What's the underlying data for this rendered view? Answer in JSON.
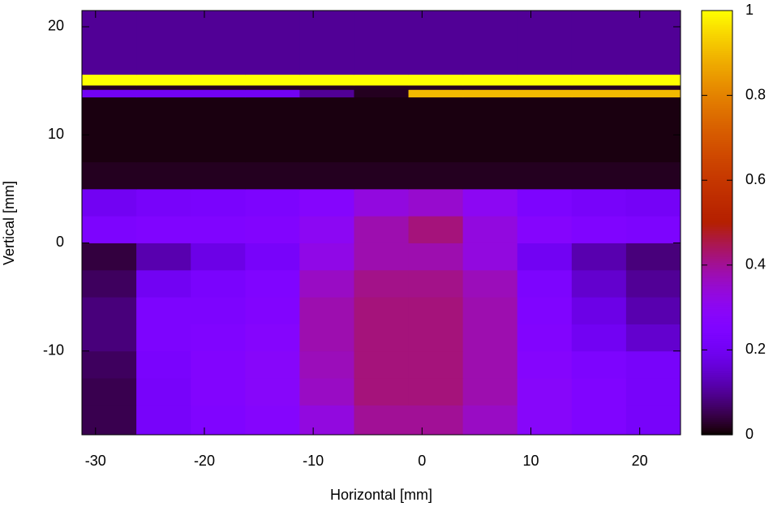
{
  "chart_data": {
    "type": "heatmap",
    "x_label": "Horizontal [mm]",
    "y_label": "Vertical [mm]",
    "x_edges": [
      -31.25,
      -26.25,
      -21.25,
      -16.25,
      -11.25,
      -6.25,
      -1.25,
      3.75,
      8.75,
      13.75,
      18.75,
      23.75
    ],
    "y_edges": [
      -17.75,
      -15,
      -12.5,
      -10,
      -7.5,
      -5,
      -2.5,
      0,
      2.5,
      5,
      7.5,
      13.5,
      14.2,
      14.6,
      15.6,
      21.5
    ],
    "z": [
      [
        0.05,
        0.22,
        0.25,
        0.27,
        0.33,
        0.4,
        0.4,
        0.36,
        0.28,
        0.25,
        0.22
      ],
      [
        0.05,
        0.22,
        0.26,
        0.28,
        0.36,
        0.42,
        0.42,
        0.38,
        0.28,
        0.25,
        0.22
      ],
      [
        0.06,
        0.23,
        0.26,
        0.28,
        0.37,
        0.42,
        0.42,
        0.38,
        0.27,
        0.24,
        0.22
      ],
      [
        0.08,
        0.24,
        0.25,
        0.27,
        0.38,
        0.42,
        0.42,
        0.38,
        0.26,
        0.2,
        0.15
      ],
      [
        0.08,
        0.24,
        0.24,
        0.26,
        0.38,
        0.42,
        0.42,
        0.38,
        0.25,
        0.18,
        0.12
      ],
      [
        0.06,
        0.2,
        0.23,
        0.25,
        0.36,
        0.41,
        0.41,
        0.37,
        0.24,
        0.15,
        0.1
      ],
      [
        0.04,
        0.12,
        0.18,
        0.22,
        0.32,
        0.38,
        0.38,
        0.33,
        0.2,
        0.12,
        0.08
      ],
      [
        0.24,
        0.25,
        0.25,
        0.26,
        0.3,
        0.38,
        0.42,
        0.33,
        0.27,
        0.25,
        0.24
      ],
      [
        0.2,
        0.22,
        0.23,
        0.24,
        0.27,
        0.33,
        0.35,
        0.3,
        0.24,
        0.22,
        0.21
      ],
      [
        0.02,
        0.02,
        0.02,
        0.02,
        0.02,
        0.02,
        0.02,
        0.02,
        0.02,
        0.02,
        0.02
      ],
      [
        0.01,
        0.01,
        0.01,
        0.01,
        0.01,
        0.01,
        0.01,
        0.01,
        0.01,
        0.01,
        0.01
      ],
      [
        0.2,
        0.2,
        0.2,
        0.2,
        0.1,
        0.02,
        0.9,
        0.9,
        0.9,
        0.9,
        0.9
      ],
      [
        0.02,
        0.02,
        0.02,
        0.02,
        0.02,
        0.02,
        0.02,
        0.02,
        0.02,
        0.02,
        0.02
      ],
      [
        1,
        1,
        1,
        1,
        1,
        1,
        1,
        1,
        1,
        1,
        1
      ],
      [
        0.1,
        0.1,
        0.1,
        0.1,
        0.1,
        0.1,
        0.1,
        0.1,
        0.1,
        0.1,
        0.1
      ]
    ],
    "xlim": [
      -31.25,
      23.75
    ],
    "ylim": [
      -17.75,
      21.5
    ],
    "xticks": [
      -30,
      -20,
      -10,
      0,
      10,
      20
    ],
    "yticks": [
      -10,
      0,
      10,
      20
    ],
    "clim": [
      0,
      1
    ],
    "cticks": [
      0,
      0.2,
      0.4,
      0.6,
      0.8,
      1
    ],
    "colormap": "gnuplot"
  }
}
